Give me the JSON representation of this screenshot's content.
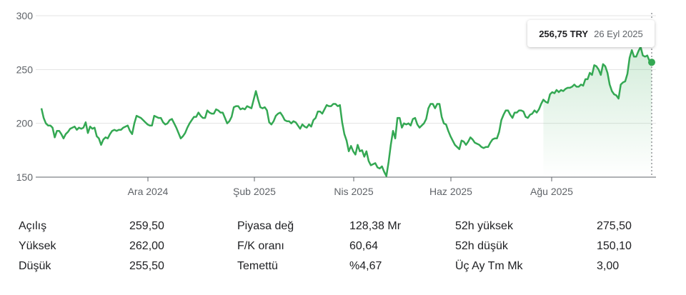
{
  "chart_data": {
    "type": "line",
    "ylim": [
      150,
      300
    ],
    "y_ticks": [
      "300",
      "250",
      "200",
      "150"
    ],
    "y_tick_values": [
      300,
      250,
      200,
      150
    ],
    "x_ticks": [
      "Ara 2024",
      "Şub 2025",
      "Nis 2025",
      "Haz 2025",
      "Ağu 2025"
    ],
    "line_color": "#34a853",
    "grid": "horizontal",
    "series": [
      {
        "values": [
          214,
          205,
          200,
          198,
          198,
          196,
          187,
          193,
          193,
          190,
          186,
          190,
          192,
          195,
          196,
          197,
          194,
          196,
          195,
          196,
          201,
          191,
          197,
          195,
          196,
          188,
          186,
          180,
          185,
          187,
          186,
          190,
          193,
          194,
          193,
          194,
          194,
          196,
          197,
          198,
          193,
          190,
          200,
          207,
          206,
          205,
          203,
          201,
          199,
          198,
          198,
          207,
          206,
          205,
          205,
          201,
          199,
          200,
          203,
          204,
          200,
          196,
          191,
          186,
          188,
          191,
          196,
          200,
          203,
          206,
          206,
          210,
          207,
          205,
          205,
          212,
          210,
          209,
          209,
          213,
          212,
          210,
          210,
          205,
          200,
          202,
          206,
          215,
          216,
          216,
          213,
          214,
          213,
          216,
          215,
          214,
          222,
          230,
          222,
          215,
          214,
          215,
          212,
          201,
          199,
          202,
          207,
          209,
          210,
          207,
          203,
          202,
          202,
          200,
          202,
          201,
          198,
          195,
          199,
          197,
          196,
          199,
          197,
          203,
          205,
          211,
          211,
          209,
          213,
          217,
          216,
          216,
          218,
          218,
          216,
          217,
          201,
          190,
          184,
          174,
          179,
          174,
          171,
          180,
          174,
          175,
          169,
          174,
          165,
          161,
          162,
          163,
          159,
          158,
          160,
          155,
          151,
          164,
          180,
          193,
          186,
          205,
          205,
          196,
          200,
          199,
          200,
          198,
          204,
          205,
          199,
          196,
          198,
          200,
          204,
          214,
          218,
          218,
          214,
          218,
          218,
          206,
          200,
          199,
          193,
          188,
          184,
          180,
          178,
          176,
          184,
          183,
          180,
          183,
          187,
          185,
          182,
          181,
          180,
          178,
          177,
          178,
          178,
          182,
          185,
          186,
          186,
          192,
          203,
          208,
          212,
          212,
          208,
          205,
          210,
          210,
          212,
          212,
          211,
          206,
          205,
          208,
          209,
          212,
          210,
          213,
          218,
          222,
          220,
          219,
          227,
          229,
          228,
          231,
          229,
          231,
          230,
          232,
          233,
          233,
          234,
          236,
          234,
          234,
          236,
          235,
          241,
          241,
          247,
          245,
          254,
          253,
          250,
          245,
          255,
          253,
          247,
          236,
          230,
          227,
          226,
          223,
          236,
          238,
          239,
          246,
          261,
          268,
          262,
          262,
          267,
          271,
          263,
          262,
          263,
          258,
          256.75
        ]
      }
    ],
    "tooltip": {
      "price": "256,75 TRY",
      "date": "26 Eyl 2025"
    }
  },
  "stats": [
    {
      "l1": "Açılış",
      "v1": "259,50",
      "l2": "Piyasa değ",
      "v2": "128,38 Mr",
      "l3": "52h yüksek",
      "v3": "275,50"
    },
    {
      "l1": "Yüksek",
      "v1": "262,00",
      "l2": "F/K oranı",
      "v2": "60,64",
      "l3": "52h düşük",
      "v3": "150,10"
    },
    {
      "l1": "Düşük",
      "v1": "255,50",
      "l2": "Temettü",
      "v2": "%4,67",
      "l3": "Üç Ay Tm Mk",
      "v3": "3,00"
    }
  ]
}
